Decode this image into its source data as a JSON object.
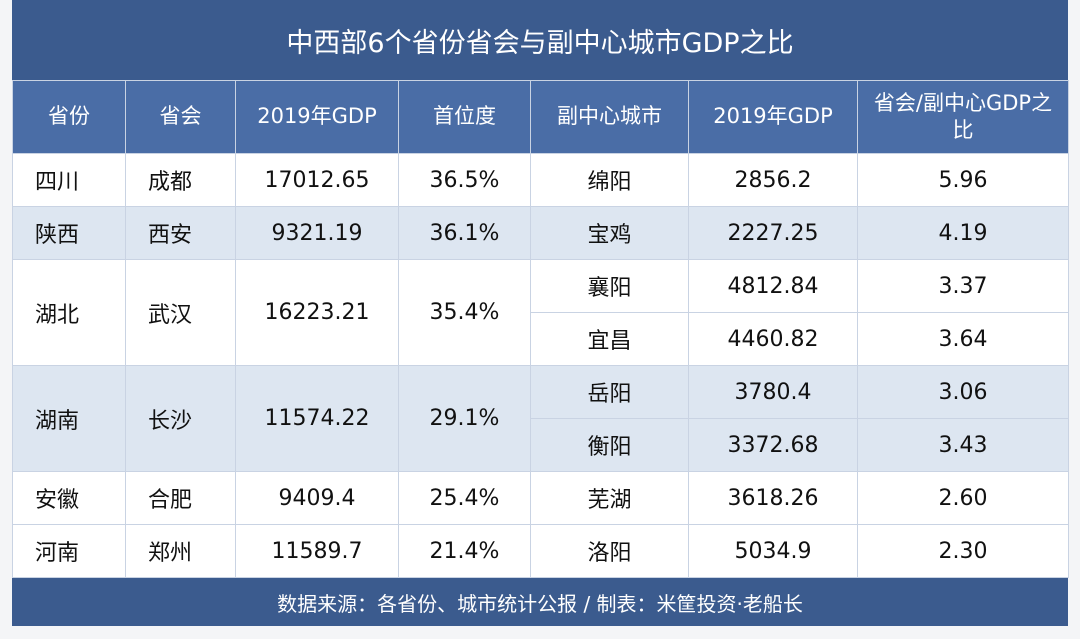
{
  "title": "中西部6个省份省会与副中心城市GDP之比",
  "table": {
    "headers": [
      "省份",
      "省会",
      "2019年GDP",
      "首位度",
      "副中心城市",
      "2019年GDP",
      "省会/副中心GDP之比"
    ],
    "groups": [
      {
        "province": "四川",
        "capital": "成都",
        "gdp": "17012.65",
        "primacy": "36.5%",
        "cities": [
          {
            "city": "绵阳",
            "gdp": "2856.2",
            "ratio": "5.96"
          }
        ]
      },
      {
        "province": "陕西",
        "capital": "西安",
        "gdp": "9321.19",
        "primacy": "36.1%",
        "cities": [
          {
            "city": "宝鸡",
            "gdp": "2227.25",
            "ratio": "4.19"
          }
        ]
      },
      {
        "province": "湖北",
        "capital": "武汉",
        "gdp": "16223.21",
        "primacy": "35.4%",
        "cities": [
          {
            "city": "襄阳",
            "gdp": "4812.84",
            "ratio": "3.37"
          },
          {
            "city": "宜昌",
            "gdp": "4460.82",
            "ratio": "3.64"
          }
        ]
      },
      {
        "province": "湖南",
        "capital": "长沙",
        "gdp": "11574.22",
        "primacy": "29.1%",
        "cities": [
          {
            "city": "岳阳",
            "gdp": "3780.4",
            "ratio": "3.06"
          },
          {
            "city": "衡阳",
            "gdp": "3372.68",
            "ratio": "3.43"
          }
        ]
      },
      {
        "province": "安徽",
        "capital": "合肥",
        "gdp": "9409.4",
        "primacy": "25.4%",
        "cities": [
          {
            "city": "芜湖",
            "gdp": "3618.26",
            "ratio": "2.60"
          }
        ]
      },
      {
        "province": "河南",
        "capital": "郑州",
        "gdp": "11589.7",
        "primacy": "21.4%",
        "cities": [
          {
            "city": "洛阳",
            "gdp": "5034.9",
            "ratio": "2.30"
          }
        ]
      }
    ]
  },
  "footer": "数据来源：各省份、城市统计公报 / 制表：米筐投资·老船长"
}
